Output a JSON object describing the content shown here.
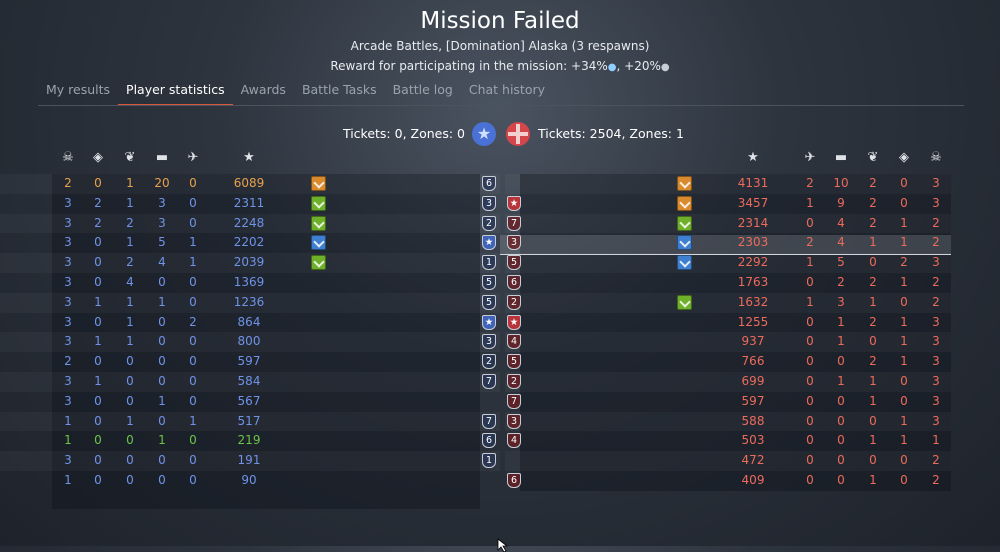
{
  "header": {
    "title": "Mission Failed",
    "subtitle": "Arcade Battles, [Domination] Alaska (3 respawns)",
    "reward": "Reward for participating in the mission: +34%",
    "reward_extra": ", +20%"
  },
  "tabs": [
    {
      "label": "My results"
    },
    {
      "label": "Player statistics",
      "active": true
    },
    {
      "label": "Awards"
    },
    {
      "label": "Battle Tasks"
    },
    {
      "label": "Battle log"
    },
    {
      "label": "Chat history"
    }
  ],
  "score": {
    "left": "Tickets: 0, Zones: 0",
    "right": "Tickets: 2504, Zones: 1"
  },
  "header_icons": {
    "left": [
      "skull-icon",
      "diamond-icon",
      "laurel-icon",
      "tank-icon",
      "plane-icon",
      "star-icon"
    ],
    "right": [
      "star-icon",
      "plane-icon",
      "tank-icon",
      "laurel-icon",
      "diamond-icon",
      "skull-icon"
    ]
  },
  "colors": {
    "blue": "#6f93e8",
    "red": "#ec6b5b",
    "orange": "#e8a24a",
    "green": "#6cc44a"
  },
  "left_team": [
    {
      "deaths": "2",
      "assists": "0",
      "caps": "1",
      "ground": "20",
      "air": "0",
      "score": "6089",
      "rank": "6",
      "chevron": "o",
      "color": "orange"
    },
    {
      "deaths": "3",
      "assists": "2",
      "caps": "1",
      "ground": "3",
      "air": "0",
      "score": "2311",
      "rank": "3",
      "chevron": "g",
      "color": "blue"
    },
    {
      "deaths": "3",
      "assists": "2",
      "caps": "2",
      "ground": "3",
      "air": "0",
      "score": "2248",
      "rank": "2",
      "chevron": "g",
      "color": "blue"
    },
    {
      "deaths": "3",
      "assists": "0",
      "caps": "1",
      "ground": "5",
      "air": "1",
      "score": "2202",
      "rank": "★",
      "chevron": "b",
      "color": "blue"
    },
    {
      "deaths": "3",
      "assists": "0",
      "caps": "2",
      "ground": "4",
      "air": "1",
      "score": "2039",
      "rank": "1",
      "chevron": "g",
      "color": "blue"
    },
    {
      "deaths": "3",
      "assists": "0",
      "caps": "4",
      "ground": "0",
      "air": "0",
      "score": "1369",
      "rank": "5",
      "chevron": "",
      "color": "blue"
    },
    {
      "deaths": "3",
      "assists": "1",
      "caps": "1",
      "ground": "1",
      "air": "0",
      "score": "1236",
      "rank": "5",
      "chevron": "",
      "color": "blue"
    },
    {
      "deaths": "3",
      "assists": "0",
      "caps": "1",
      "ground": "0",
      "air": "2",
      "score": "864",
      "rank": "★",
      "chevron": "",
      "color": "blue"
    },
    {
      "deaths": "3",
      "assists": "1",
      "caps": "1",
      "ground": "0",
      "air": "0",
      "score": "800",
      "rank": "3",
      "chevron": "",
      "color": "blue"
    },
    {
      "deaths": "2",
      "assists": "0",
      "caps": "0",
      "ground": "0",
      "air": "0",
      "score": "597",
      "rank": "2",
      "chevron": "",
      "color": "blue"
    },
    {
      "deaths": "3",
      "assists": "1",
      "caps": "0",
      "ground": "0",
      "air": "0",
      "score": "584",
      "rank": "7",
      "chevron": "",
      "color": "blue"
    },
    {
      "deaths": "3",
      "assists": "0",
      "caps": "0",
      "ground": "1",
      "air": "0",
      "score": "567",
      "rank": "",
      "chevron": "",
      "color": "blue"
    },
    {
      "deaths": "1",
      "assists": "0",
      "caps": "1",
      "ground": "0",
      "air": "1",
      "score": "517",
      "rank": "7",
      "chevron": "",
      "color": "blue"
    },
    {
      "deaths": "1",
      "assists": "0",
      "caps": "0",
      "ground": "1",
      "air": "0",
      "score": "219",
      "rank": "6",
      "chevron": "",
      "color": "green"
    },
    {
      "deaths": "3",
      "assists": "0",
      "caps": "0",
      "ground": "0",
      "air": "0",
      "score": "191",
      "rank": "1",
      "chevron": "",
      "color": "blue"
    },
    {
      "deaths": "1",
      "assists": "0",
      "caps": "0",
      "ground": "0",
      "air": "0",
      "score": "90",
      "rank": "",
      "chevron": "",
      "color": "blue"
    }
  ],
  "right_team": [
    {
      "score": "4131",
      "air": "2",
      "ground": "10",
      "caps": "2",
      "assists": "0",
      "deaths": "3",
      "rank": "",
      "chevron": "o"
    },
    {
      "score": "3457",
      "air": "1",
      "ground": "9",
      "caps": "2",
      "assists": "0",
      "deaths": "3",
      "rank": "★",
      "chevron": "o"
    },
    {
      "score": "2314",
      "air": "0",
      "ground": "4",
      "caps": "2",
      "assists": "1",
      "deaths": "2",
      "rank": "7",
      "chevron": "g"
    },
    {
      "score": "2303",
      "air": "2",
      "ground": "4",
      "caps": "1",
      "assists": "1",
      "deaths": "2",
      "rank": "3",
      "chevron": "b"
    },
    {
      "score": "2292",
      "air": "1",
      "ground": "5",
      "caps": "0",
      "assists": "2",
      "deaths": "3",
      "rank": "5",
      "chevron": "b"
    },
    {
      "score": "1763",
      "air": "0",
      "ground": "2",
      "caps": "2",
      "assists": "1",
      "deaths": "2",
      "rank": "6",
      "chevron": ""
    },
    {
      "score": "1632",
      "air": "1",
      "ground": "3",
      "caps": "1",
      "assists": "0",
      "deaths": "2",
      "rank": "2",
      "chevron": "g"
    },
    {
      "score": "1255",
      "air": "0",
      "ground": "1",
      "caps": "2",
      "assists": "1",
      "deaths": "3",
      "rank": "★",
      "chevron": ""
    },
    {
      "score": "937",
      "air": "0",
      "ground": "1",
      "caps": "0",
      "assists": "1",
      "deaths": "3",
      "rank": "4",
      "chevron": ""
    },
    {
      "score": "766",
      "air": "0",
      "ground": "0",
      "caps": "2",
      "assists": "1",
      "deaths": "3",
      "rank": "5",
      "chevron": ""
    },
    {
      "score": "699",
      "air": "0",
      "ground": "1",
      "caps": "1",
      "assists": "0",
      "deaths": "3",
      "rank": "2",
      "chevron": ""
    },
    {
      "score": "597",
      "air": "0",
      "ground": "0",
      "caps": "1",
      "assists": "0",
      "deaths": "3",
      "rank": "7",
      "chevron": ""
    },
    {
      "score": "588",
      "air": "0",
      "ground": "0",
      "caps": "0",
      "assists": "1",
      "deaths": "3",
      "rank": "3",
      "chevron": ""
    },
    {
      "score": "503",
      "air": "0",
      "ground": "0",
      "caps": "1",
      "assists": "1",
      "deaths": "1",
      "rank": "4",
      "chevron": ""
    },
    {
      "score": "472",
      "air": "0",
      "ground": "0",
      "caps": "0",
      "assists": "0",
      "deaths": "2",
      "rank": "",
      "chevron": ""
    },
    {
      "score": "409",
      "air": "0",
      "ground": "0",
      "caps": "1",
      "assists": "0",
      "deaths": "2",
      "rank": "6",
      "chevron": ""
    }
  ]
}
